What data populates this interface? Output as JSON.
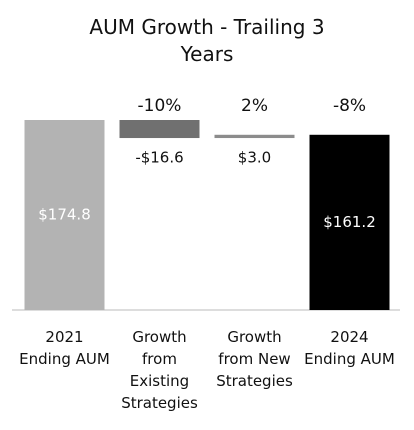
{
  "chart_data": {
    "type": "waterfall",
    "title": "AUM Growth - Trailing 3 Years",
    "categories": [
      "2021 Ending AUM",
      "Growth from Existing Strategies",
      "Growth from New Strategies",
      "2024 Ending AUM"
    ],
    "measures": [
      "absolute",
      "relative",
      "relative",
      "total"
    ],
    "values": [
      174.8,
      -16.6,
      3.0,
      161.2
    ],
    "value_labels": [
      "$174.8",
      "-$16.6",
      "$3.0",
      "$161.2"
    ],
    "change_labels": [
      null,
      "-10%",
      "2%",
      "-8%"
    ],
    "colors": [
      "#b3b3b3",
      "#707070",
      "#8c8c8c",
      "#000000"
    ]
  }
}
